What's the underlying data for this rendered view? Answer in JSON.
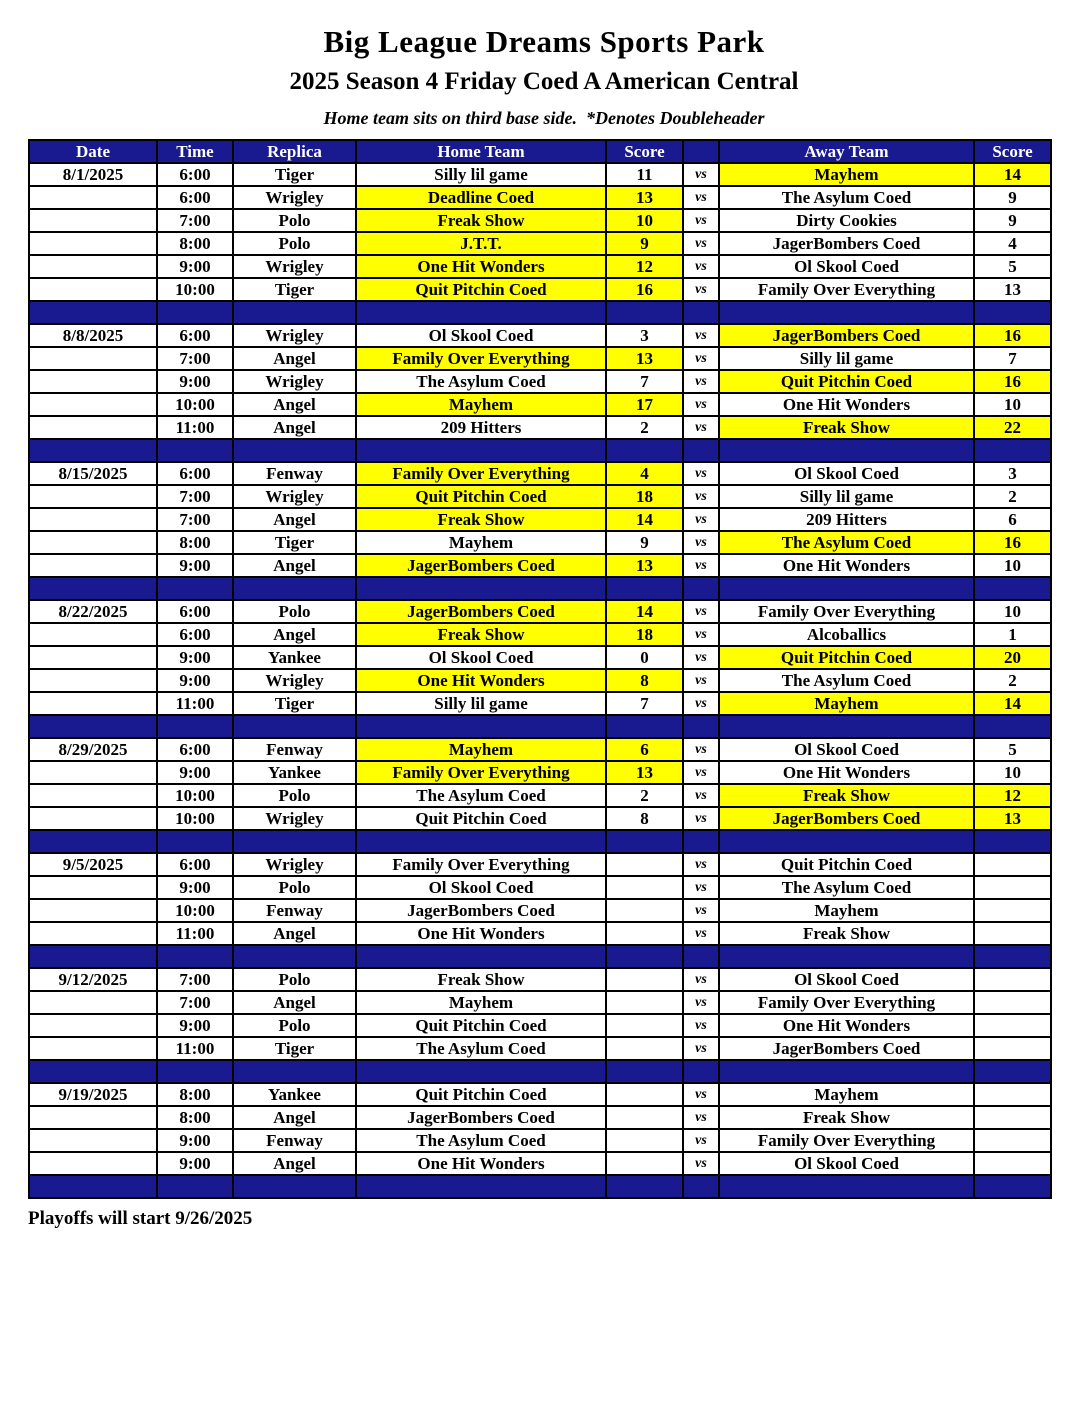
{
  "title": "Big League Dreams Sports Park",
  "subtitle": "2025 Season 4 Friday Coed A American Central",
  "note": "Home team sits on third base side.  *Denotes Doubleheader",
  "footer": "Playoffs will start 9/26/2025",
  "colors": {
    "navy": "#191990",
    "highlight": "#ffff00",
    "header_text": "#ffffff",
    "body_text": "#000000"
  },
  "schedule": {
    "columns": [
      "Date",
      "Time",
      "Replica",
      "Home Team",
      "Score",
      "",
      "Away Team",
      "Score"
    ],
    "vs_label": "vs",
    "blocks": [
      {
        "date": "8/1/2025",
        "games": [
          {
            "time": "6:00",
            "replica": "Tiger",
            "home": "Silly lil game",
            "home_score": "11",
            "away": "Mayhem",
            "away_score": "14",
            "winner": "away"
          },
          {
            "time": "6:00",
            "replica": "Wrigley",
            "home": "Deadline Coed",
            "home_score": "13",
            "away": "The Asylum Coed",
            "away_score": "9",
            "winner": "home"
          },
          {
            "time": "7:00",
            "replica": "Polo",
            "home": "Freak Show",
            "home_score": "10",
            "away": "Dirty Cookies",
            "away_score": "9",
            "winner": "home"
          },
          {
            "time": "8:00",
            "replica": "Polo",
            "home": "J.T.T.",
            "home_score": "9",
            "away": "JagerBombers Coed",
            "away_score": "4",
            "winner": "home"
          },
          {
            "time": "9:00",
            "replica": "Wrigley",
            "home": "One Hit Wonders",
            "home_score": "12",
            "away": "Ol Skool Coed",
            "away_score": "5",
            "winner": "home"
          },
          {
            "time": "10:00",
            "replica": "Tiger",
            "home": "Quit Pitchin Coed",
            "home_score": "16",
            "away": "Family Over Everything",
            "away_score": "13",
            "winner": "home"
          }
        ]
      },
      {
        "date": "8/8/2025",
        "games": [
          {
            "time": "6:00",
            "replica": "Wrigley",
            "home": "Ol Skool Coed",
            "home_score": "3",
            "away": "JagerBombers Coed",
            "away_score": "16",
            "winner": "away"
          },
          {
            "time": "7:00",
            "replica": "Angel",
            "home": "Family Over Everything",
            "home_score": "13",
            "away": "Silly lil game",
            "away_score": "7",
            "winner": "home"
          },
          {
            "time": "9:00",
            "replica": "Wrigley",
            "home": "The Asylum Coed",
            "home_score": "7",
            "away": "Quit Pitchin Coed",
            "away_score": "16",
            "winner": "away"
          },
          {
            "time": "10:00",
            "replica": "Angel",
            "home": "Mayhem",
            "home_score": "17",
            "away": "One Hit Wonders",
            "away_score": "10",
            "winner": "home"
          },
          {
            "time": "11:00",
            "replica": "Angel",
            "home": "209 Hitters",
            "home_score": "2",
            "away": "Freak Show",
            "away_score": "22",
            "winner": "away"
          }
        ]
      },
      {
        "date": "8/15/2025",
        "games": [
          {
            "time": "6:00",
            "replica": "Fenway",
            "home": "Family Over Everything",
            "home_score": "4",
            "away": "Ol Skool Coed",
            "away_score": "3",
            "winner": "home"
          },
          {
            "time": "7:00",
            "replica": "Wrigley",
            "home": "Quit Pitchin Coed",
            "home_score": "18",
            "away": "Silly lil game",
            "away_score": "2",
            "winner": "home"
          },
          {
            "time": "7:00",
            "replica": "Angel",
            "home": "Freak Show",
            "home_score": "14",
            "away": "209 Hitters",
            "away_score": "6",
            "winner": "home"
          },
          {
            "time": "8:00",
            "replica": "Tiger",
            "home": "Mayhem",
            "home_score": "9",
            "away": "The Asylum Coed",
            "away_score": "16",
            "winner": "away"
          },
          {
            "time": "9:00",
            "replica": "Angel",
            "home": "JagerBombers Coed",
            "home_score": "13",
            "away": "One Hit Wonders",
            "away_score": "10",
            "winner": "home"
          }
        ]
      },
      {
        "date": "8/22/2025",
        "games": [
          {
            "time": "6:00",
            "replica": "Polo",
            "home": "JagerBombers Coed",
            "home_score": "14",
            "away": "Family Over Everything",
            "away_score": "10",
            "winner": "home"
          },
          {
            "time": "6:00",
            "replica": "Angel",
            "home": "Freak Show",
            "home_score": "18",
            "away": "Alcoballics",
            "away_score": "1",
            "winner": "home"
          },
          {
            "time": "9:00",
            "replica": "Yankee",
            "home": "Ol Skool Coed",
            "home_score": "0",
            "away": "Quit Pitchin Coed",
            "away_score": "20",
            "winner": "away"
          },
          {
            "time": "9:00",
            "replica": "Wrigley",
            "home": "One Hit Wonders",
            "home_score": "8",
            "away": "The Asylum Coed",
            "away_score": "2",
            "winner": "home"
          },
          {
            "time": "11:00",
            "replica": "Tiger",
            "home": "Silly lil game",
            "home_score": "7",
            "away": "Mayhem",
            "away_score": "14",
            "winner": "away"
          }
        ]
      },
      {
        "date": "8/29/2025",
        "games": [
          {
            "time": "6:00",
            "replica": "Fenway",
            "home": "Mayhem",
            "home_score": "6",
            "away": "Ol Skool Coed",
            "away_score": "5",
            "winner": "home"
          },
          {
            "time": "9:00",
            "replica": "Yankee",
            "home": "Family Over Everything",
            "home_score": "13",
            "away": "One Hit Wonders",
            "away_score": "10",
            "winner": "home"
          },
          {
            "time": "10:00",
            "replica": "Polo",
            "home": "The Asylum Coed",
            "home_score": "2",
            "away": "Freak Show",
            "away_score": "12",
            "winner": "away"
          },
          {
            "time": "10:00",
            "replica": "Wrigley",
            "home": "Quit Pitchin Coed",
            "home_score": "8",
            "away": "JagerBombers Coed",
            "away_score": "13",
            "winner": "away"
          }
        ]
      },
      {
        "date": "9/5/2025",
        "games": [
          {
            "time": "6:00",
            "replica": "Wrigley",
            "home": "Family Over Everything",
            "home_score": "",
            "away": "Quit Pitchin Coed",
            "away_score": "",
            "winner": null
          },
          {
            "time": "9:00",
            "replica": "Polo",
            "home": "Ol Skool Coed",
            "home_score": "",
            "away": "The Asylum Coed",
            "away_score": "",
            "winner": null
          },
          {
            "time": "10:00",
            "replica": "Fenway",
            "home": "JagerBombers Coed",
            "home_score": "",
            "away": "Mayhem",
            "away_score": "",
            "winner": null
          },
          {
            "time": "11:00",
            "replica": "Angel",
            "home": "One Hit Wonders",
            "home_score": "",
            "away": "Freak Show",
            "away_score": "",
            "winner": null
          }
        ]
      },
      {
        "date": "9/12/2025",
        "games": [
          {
            "time": "7:00",
            "replica": "Polo",
            "home": "Freak Show",
            "home_score": "",
            "away": "Ol Skool Coed",
            "away_score": "",
            "winner": null
          },
          {
            "time": "7:00",
            "replica": "Angel",
            "home": "Mayhem",
            "home_score": "",
            "away": "Family Over Everything",
            "away_score": "",
            "winner": null
          },
          {
            "time": "9:00",
            "replica": "Polo",
            "home": "Quit Pitchin Coed",
            "home_score": "",
            "away": "One Hit Wonders",
            "away_score": "",
            "winner": null
          },
          {
            "time": "11:00",
            "replica": "Tiger",
            "home": "The Asylum Coed",
            "home_score": "",
            "away": "JagerBombers Coed",
            "away_score": "",
            "winner": null
          }
        ]
      },
      {
        "date": "9/19/2025",
        "games": [
          {
            "time": "8:00",
            "replica": "Yankee",
            "home": "Quit Pitchin Coed",
            "home_score": "",
            "away": "Mayhem",
            "away_score": "",
            "winner": null
          },
          {
            "time": "8:00",
            "replica": "Angel",
            "home": "JagerBombers Coed",
            "home_score": "",
            "away": "Freak Show",
            "away_score": "",
            "winner": null
          },
          {
            "time": "9:00",
            "replica": "Fenway",
            "home": "The Asylum Coed",
            "home_score": "",
            "away": "Family Over Everything",
            "away_score": "",
            "winner": null
          },
          {
            "time": "9:00",
            "replica": "Angel",
            "home": "One Hit Wonders",
            "home_score": "",
            "away": "Ol Skool Coed",
            "away_score": "",
            "winner": null
          }
        ]
      }
    ]
  }
}
